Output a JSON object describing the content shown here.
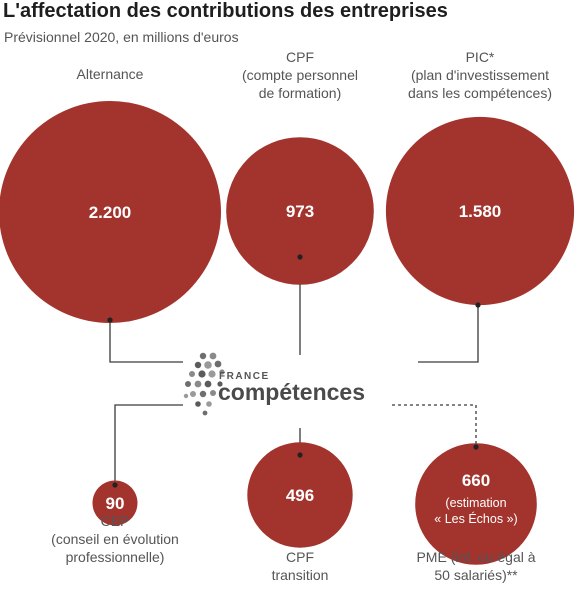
{
  "header": {
    "title": "L'affectation des contributions des entreprises",
    "subtitle": "Prévisionnel 2020, en millions d'euros"
  },
  "logo": {
    "line1": "FRANCE",
    "line2": "compétences"
  },
  "colors": {
    "bubble": "#a3332d",
    "connector": "#3a3a3a",
    "text": "#555555"
  },
  "chart_data": {
    "type": "bubble",
    "unit": "millions d'euros",
    "bubbles": [
      {
        "id": "alternance",
        "value": 2200,
        "value_label": "2.200",
        "label": [
          "Alternance"
        ]
      },
      {
        "id": "cpf",
        "value": 973,
        "value_label": "973",
        "label": [
          "CPF",
          "(compte personnel",
          "de formation)"
        ]
      },
      {
        "id": "pic",
        "value": 1580,
        "value_label": "1.580",
        "label": [
          "PIC*",
          "(plan d'investissement",
          "dans les compétences)"
        ]
      },
      {
        "id": "cep",
        "value": 90,
        "value_label": "90",
        "label": [
          "CEP",
          "(conseil en évolution",
          "professionnelle)"
        ]
      },
      {
        "id": "cpf-transition",
        "value": 496,
        "value_label": "496",
        "label": [
          "CPF",
          "transition"
        ]
      },
      {
        "id": "pme",
        "value": 660,
        "value_label": "660",
        "note": [
          "(estimation",
          "« Les Échos »)"
        ],
        "estimate": true,
        "label": [
          "PME (inf. ou égal à",
          "50 salariés)**"
        ]
      }
    ]
  }
}
